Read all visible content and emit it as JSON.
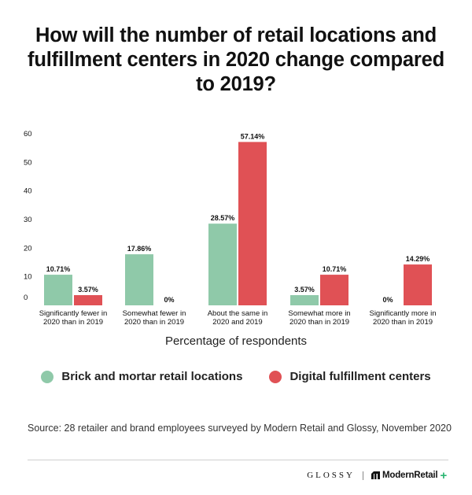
{
  "header": {
    "title": "How will the number of retail locations and fulfillment centers in 2020 change compared to 2019?"
  },
  "chart_data": {
    "type": "bar",
    "categories": [
      [
        "Significantly fewer in",
        "2020 than in 2019"
      ],
      [
        "Somewhat fewer in",
        "2020 than in 2019"
      ],
      [
        "About the same in",
        "2020 and 2019"
      ],
      [
        "Somewhat more in",
        "2020 than in 2019"
      ],
      [
        "Significantly more in",
        "2020 than in 2019"
      ]
    ],
    "series": [
      {
        "name": "Brick and mortar retail locations",
        "color": "#8fc9a9",
        "values": [
          10.71,
          17.86,
          28.57,
          3.57,
          0
        ],
        "labels": [
          "10.71%",
          "17.86%",
          "28.57%",
          "3.57%",
          "0%"
        ]
      },
      {
        "name": "Digital fulfillment centers",
        "color": "#e05155",
        "values": [
          3.57,
          0,
          57.14,
          10.71,
          14.29
        ],
        "labels": [
          "3.57%",
          "0%",
          "57.14%",
          "10.71%",
          "14.29%"
        ]
      }
    ],
    "yticks": [
      "0",
      "10",
      "20",
      "30",
      "40",
      "50",
      "60"
    ],
    "ylim": [
      0,
      60
    ],
    "xlabel": "Percentage of respondents",
    "ylabel": "",
    "grid": false,
    "legend_position": "bottom"
  },
  "footer": {
    "source": "Source: 28 retailer and brand employees surveyed by Modern Retail and Glossy, November 2020",
    "logo_glossy": "GLOSSY",
    "logo_modernretail": "ModernRetail",
    "logo_plus": "+"
  }
}
